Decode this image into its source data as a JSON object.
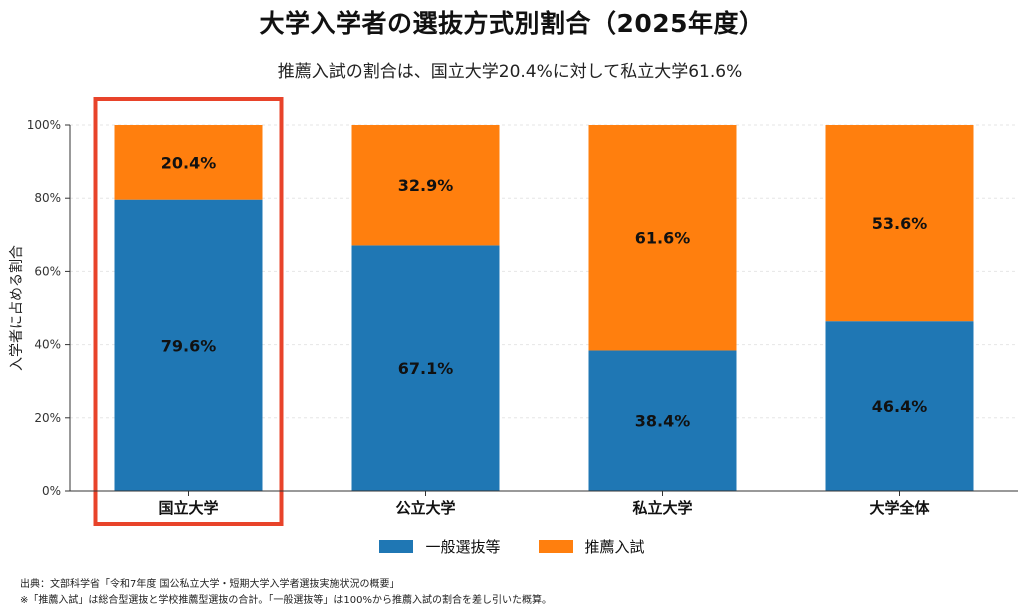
{
  "chart_data": {
    "type": "bar",
    "stacked": true,
    "title": "大学入学者の選抜方式別割合（2025年度）",
    "subtitle": "推薦入試の割合は、国立大学20.4%に対して私立大学61.6%",
    "ylabel": "入学者に占める割合",
    "xlabel": "",
    "ylim": [
      0,
      100
    ],
    "yticks": [
      "0%",
      "20%",
      "40%",
      "60%",
      "80%",
      "100%"
    ],
    "grid": true,
    "legend_position": "bottom",
    "categories": [
      "国立大学",
      "公立大学",
      "私立大学",
      "大学全体"
    ],
    "series": [
      {
        "name": "一般選抜等",
        "color": "#1f77b4",
        "values": [
          79.6,
          67.1,
          38.4,
          46.4
        ],
        "labels": [
          "79.6%",
          "67.1%",
          "38.4%",
          "46.4%"
        ]
      },
      {
        "name": "推薦入試",
        "color": "#ff7f0e",
        "values": [
          20.4,
          32.9,
          61.6,
          53.6
        ],
        "labels": [
          "20.4%",
          "32.9%",
          "61.6%",
          "53.6%"
        ]
      }
    ],
    "highlight": {
      "category": "国立大学",
      "color": "#e8432a"
    }
  },
  "footnotes": {
    "source": "出典：文部科学省「令和7年度 国公私立大学・短期大学入学者選抜実施状況の概要」",
    "note": "※「推薦入試」は総合型選抜と学校推薦型選抜の合計。「一般選抜等」は100%から推薦入試の割合を差し引いた概算。"
  }
}
